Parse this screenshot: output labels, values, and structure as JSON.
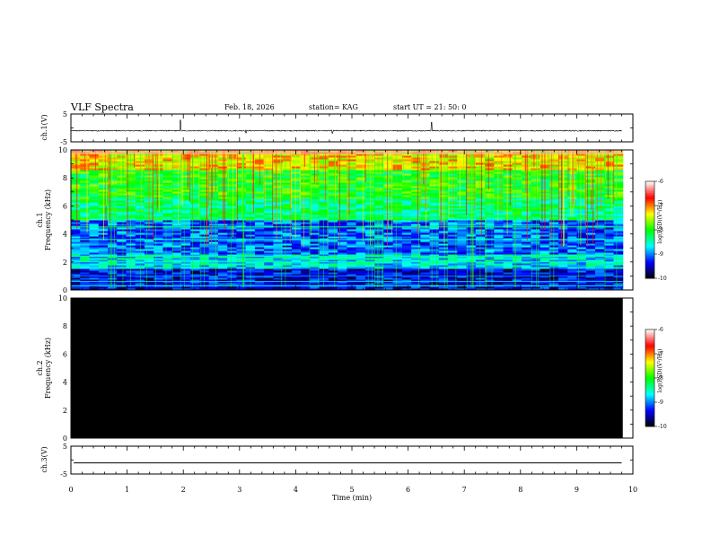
{
  "header": {
    "title": "VLF Spectra",
    "date": "Feb. 18, 2026",
    "station": "station= KAG",
    "start": "start  UT  =   21: 50: 0"
  },
  "colors": {
    "axis": "#000000",
    "background": "#ffffff",
    "trace": "#000000",
    "ch2_fill": "#000000",
    "colormap": [
      "#000000",
      "#0000ff",
      "#00ffff",
      "#00ff00",
      "#ffff00",
      "#ff0000",
      "#ffffff"
    ]
  },
  "chart_data": [
    {
      "type": "line",
      "id": "ch1_waveform",
      "ylabel": "ch.1(V)",
      "ylim": [
        -5,
        5
      ],
      "yticks": [
        "5",
        "-5"
      ],
      "xlim": [
        0,
        10
      ],
      "baseline": -1.0,
      "spikes": [
        {
          "x": 1.95,
          "y": 2.8
        },
        {
          "x": 3.12,
          "y": -1.8
        },
        {
          "x": 6.42,
          "y": 2.0
        },
        {
          "x": 4.65,
          "y": -1.9
        }
      ]
    },
    {
      "type": "heatmap",
      "id": "ch1_spectrogram",
      "ylabel": "ch.1",
      "ylabel2": "Frequency (kHz)",
      "ylim": [
        0,
        10
      ],
      "yticks": [
        "0",
        "2",
        "4",
        "6",
        "8",
        "10"
      ],
      "xlim": [
        0,
        10
      ],
      "colorbar": {
        "label": "log(PSD)(V²/Hz)",
        "range": [
          -10,
          -6
        ],
        "ticks": [
          "-6",
          "-7",
          "-8",
          "-9",
          "-10"
        ]
      },
      "bands": [
        {
          "f": 0.3,
          "level": -8.6
        },
        {
          "f": 0.6,
          "level": -8.8
        },
        {
          "f": 1.0,
          "level": -9.0
        },
        {
          "f": 2.0,
          "level": -8.5
        },
        {
          "f": 2.4,
          "level": -8.4
        },
        {
          "f": 3.6,
          "level": -8.6
        },
        {
          "f": 4.5,
          "level": -8.3
        },
        {
          "f": 5.2,
          "level": -8.2
        }
      ]
    },
    {
      "type": "heatmap",
      "id": "ch2_spectrogram",
      "ylabel": "ch.2",
      "ylabel2": "Frequency (kHz)",
      "ylim": [
        0,
        10
      ],
      "yticks": [
        "0",
        "2",
        "4",
        "6",
        "8",
        "10"
      ],
      "xlim": [
        0,
        10
      ],
      "colorbar": {
        "label": "log(PSD)(V²/Hz)",
        "range": [
          -10,
          -6
        ],
        "ticks": [
          "-6",
          "-7",
          "-8",
          "-9",
          "-10"
        ]
      },
      "level": -10
    },
    {
      "type": "line",
      "id": "ch3_waveform",
      "ylabel": "ch.3(V)",
      "ylim": [
        -5,
        5
      ],
      "yticks": [
        "5",
        "-5"
      ],
      "xlim": [
        0,
        10
      ],
      "baseline": -1.0
    }
  ],
  "xaxis": {
    "label": "Time  (min)",
    "ticks": [
      "0",
      "1",
      "2",
      "3",
      "4",
      "5",
      "6",
      "7",
      "8",
      "9",
      "10"
    ]
  }
}
